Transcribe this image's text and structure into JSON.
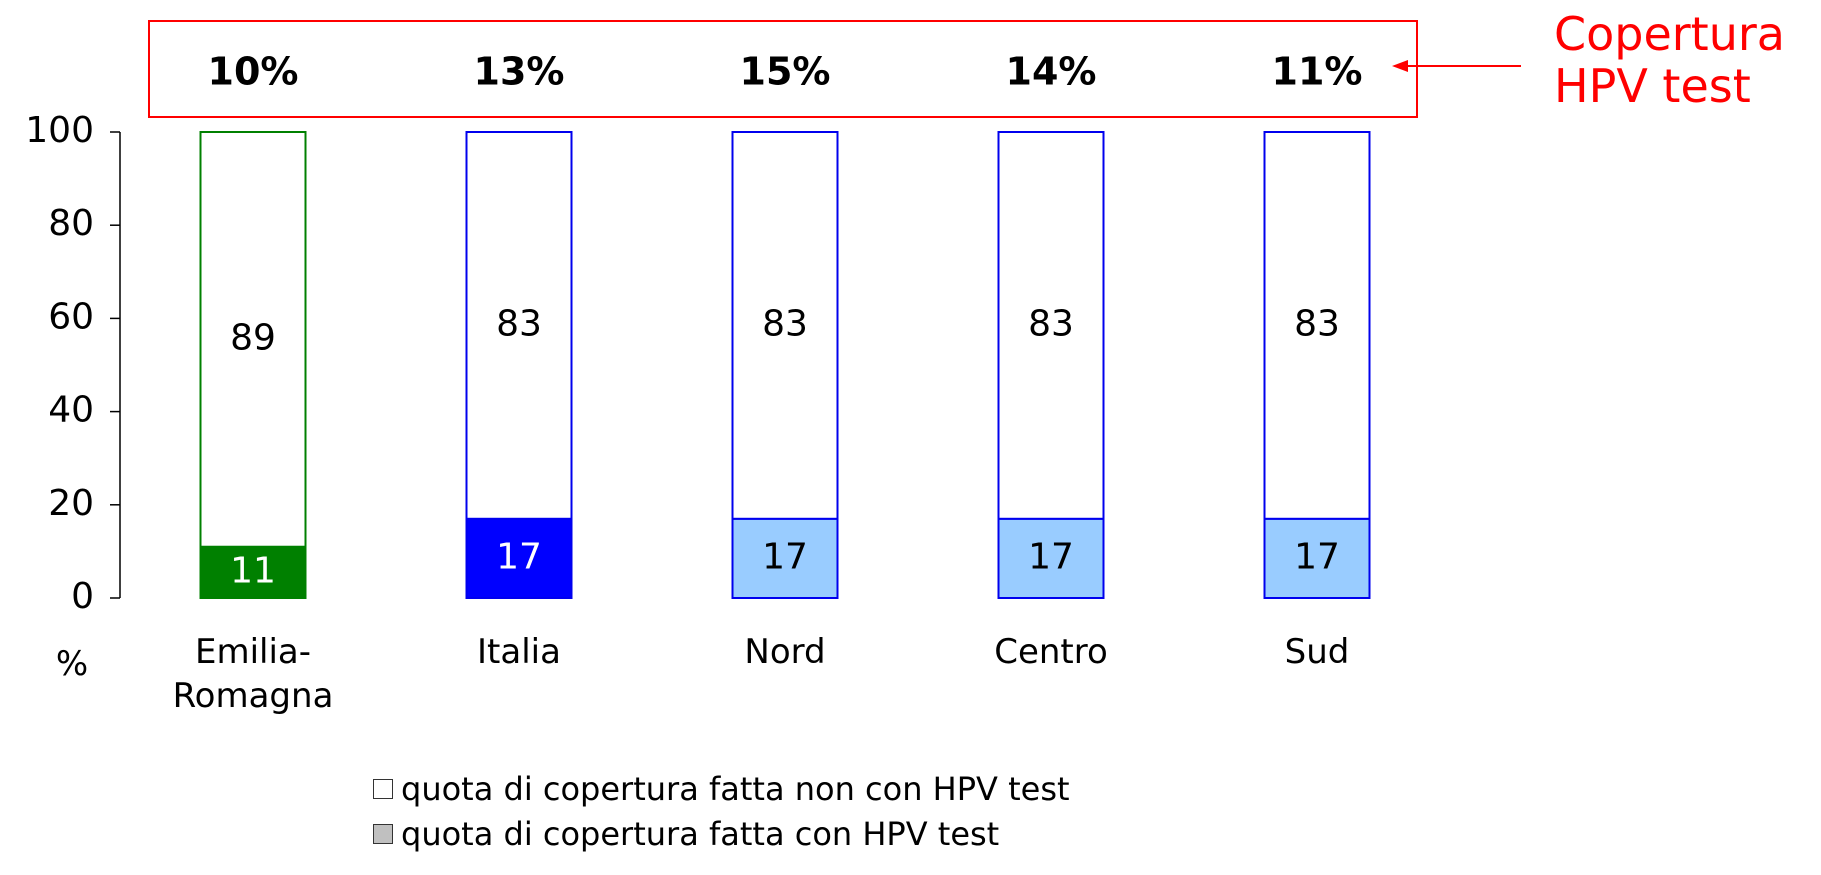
{
  "chart_data": {
    "type": "stacked_bar",
    "categories": [
      "Emilia-\nRomagna",
      "Italia",
      "Nord",
      "Centro",
      "Sud"
    ],
    "series": [
      {
        "name": "quota di copertura fatta con HPV test",
        "color": "#c0c0c0",
        "bar_colors": [
          "#008000",
          "#0000ff",
          "#99ccff",
          "#99ccff",
          "#99ccff"
        ],
        "values": [
          11,
          17,
          17,
          17,
          17
        ]
      },
      {
        "name": "quota di copertura fatta non con HPV test",
        "color": "#ffffff",
        "bar_colors": [
          "#ffffff",
          "#ffffff",
          "#ffffff",
          "#ffffff",
          "#ffffff"
        ],
        "values": [
          89,
          83,
          83,
          83,
          83
        ]
      }
    ],
    "edge_colors": [
      "#008000",
      "#0000ee",
      "#0000ee",
      "#0000ee",
      "#0000ee"
    ],
    "coverage": {
      "values": [
        10,
        13,
        15,
        14,
        11
      ],
      "value_labels": [
        "10%",
        "13%",
        "15%",
        "14%",
        "11%"
      ]
    },
    "annotation": "Copertura\nHPV test",
    "ylabel": "%",
    "ylim": [
      0,
      100
    ],
    "yticks": [
      0,
      20,
      40,
      60,
      80,
      100
    ]
  }
}
